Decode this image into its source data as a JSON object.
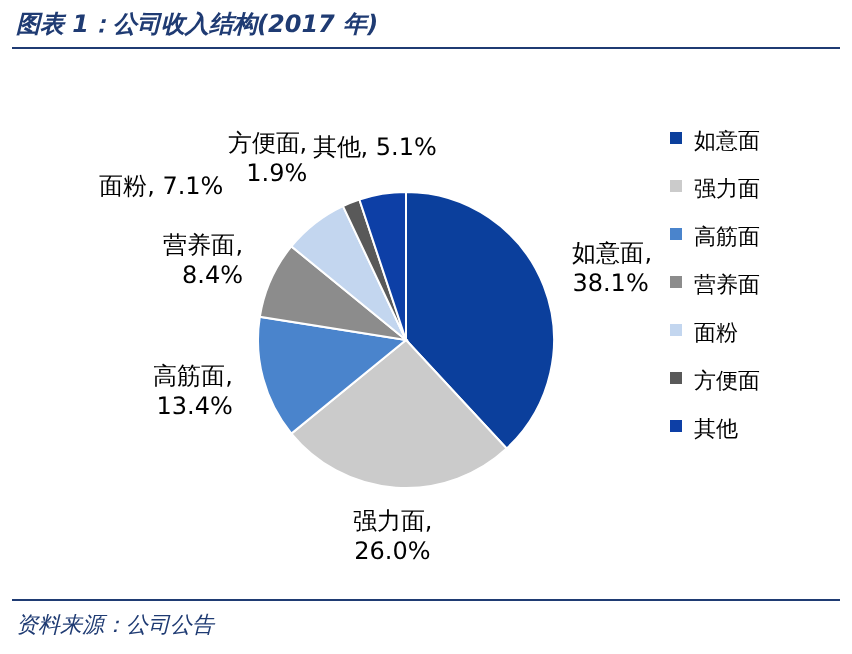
{
  "chart_data": {
    "type": "pie",
    "title": "图表 1：公司收入结构(2017 年)",
    "categories": [
      "如意面",
      "强力面",
      "高筋面",
      "营养面",
      "面粉",
      "方便面",
      "其他"
    ],
    "values": [
      38.1,
      26.0,
      13.4,
      8.4,
      7.1,
      1.9,
      5.1
    ],
    "colors": [
      "#0b3f9c",
      "#cbcbcb",
      "#4a84cc",
      "#8c8c8c",
      "#c3d6ef",
      "#595959",
      "#0d3fa6"
    ],
    "value_labels": [
      "如意面,\n38.1%",
      "强力面,\n26.0%",
      "高筋面,\n13.4%",
      "营养面,\n8.4%",
      "面粉, 7.1%",
      "方便面,\n1.9%",
      "其他, 5.1%"
    ],
    "legend": "right",
    "annotations": [
      "资料来源：公司公告"
    ]
  }
}
